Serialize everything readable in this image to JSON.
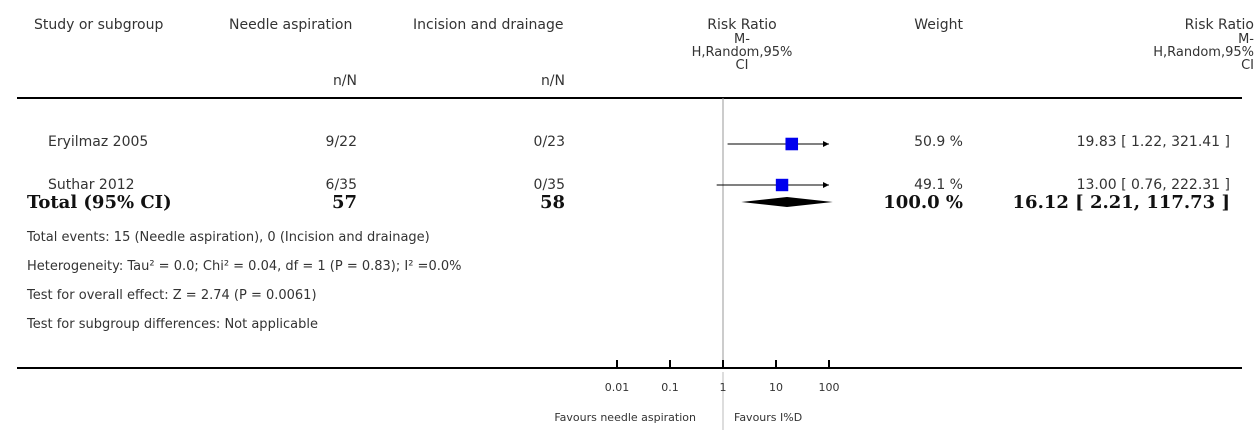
{
  "headers": {
    "study": "Study or subgroup",
    "group1": "Needle aspiration",
    "group2": "Incision and drainage",
    "rr_plot": [
      "Risk Ratio",
      "M-",
      "H,Random,95%",
      "CI"
    ],
    "weight": "Weight",
    "rr_text": [
      "Risk Ratio",
      "M-",
      "H,Random,95%",
      "CI"
    ],
    "n1": "n/N",
    "n2": "n/N"
  },
  "studies": [
    {
      "name": "Eryilmaz 2005",
      "g1": "9/22",
      "g2": "0/23",
      "weight": "50.9 %",
      "ci_text": "19.83 [ 1.22, 321.41 ]"
    },
    {
      "name": "Suthar 2012",
      "g1": "6/35",
      "g2": "0/35",
      "weight": "49.1 %",
      "ci_text": "13.00 [ 0.76, 222.31 ]"
    }
  ],
  "total": {
    "label": "Total (95% CI)",
    "g1": "57",
    "g2": "58",
    "weight": "100.0 %",
    "ci_text": "16.12 [ 2.21, 117.73 ]"
  },
  "notes": {
    "events": "Total events: 15 (Needle aspiration), 0 (Incision and drainage)",
    "heterogeneity": "Heterogeneity: Tau² = 0.0; Chi² = 0.04, df = 1 (P = 0.83); I² =0.0%",
    "overall": "Test for overall effect: Z = 2.74 (P = 0.0061)",
    "subgroup": "Test for subgroup differences: Not applicable"
  },
  "axis": {
    "tick_labels": [
      "0.01",
      "0.1",
      "1",
      "10",
      "100"
    ],
    "favours_left": "Favours needle aspiration",
    "favours_right": "Favours I%D"
  },
  "colors": {
    "study_marker": "#0000ee",
    "diamond": "#000000",
    "lines": "#000000",
    "null_line": "#999999"
  },
  "chart_data": {
    "type": "forest",
    "scale": "log",
    "xlim": [
      0.01,
      100
    ],
    "ticks": [
      0.01,
      0.1,
      1,
      10,
      100
    ],
    "null_value": 1,
    "studies": [
      {
        "name": "Eryilmaz 2005",
        "rr": 19.83,
        "lower": 1.22,
        "upper": 321.41,
        "weight": 50.9
      },
      {
        "name": "Suthar 2012",
        "rr": 13.0,
        "lower": 0.76,
        "upper": 222.31,
        "weight": 49.1
      }
    ],
    "pooled": {
      "rr": 16.12,
      "lower": 2.21,
      "upper": 117.73
    }
  }
}
